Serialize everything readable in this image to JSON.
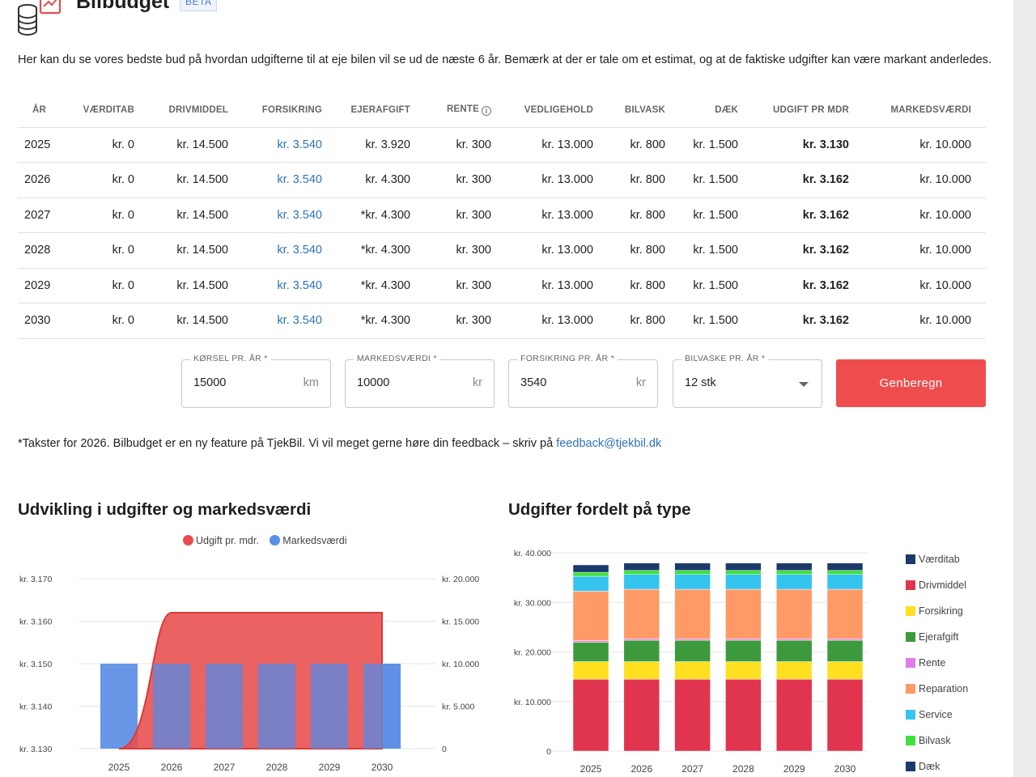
{
  "header": {
    "title": "Bilbudget",
    "badge": "BETA"
  },
  "intro": "Her kan du se vores bedste bud på hvordan udgifterne til at eje bilen vil se ud de næste 6 år. Bemærk at der er tale om et estimat, og at de faktiske udgifter kan være markant anderledes.",
  "table": {
    "headers": [
      "ÅR",
      "VÆRDITAB",
      "DRIVMIDDEL",
      "FORSIKRING",
      "EJERAFGIFT",
      "RENTE",
      "VEDLIGEHOLD",
      "BILVASK",
      "DÆK",
      "UDGIFT PR MDR",
      "MARKEDSVÆRDI"
    ],
    "rows": [
      [
        "2025",
        "kr. 0",
        "kr. 14.500",
        "kr. 3.540",
        "kr. 3.920",
        "kr. 300",
        "kr. 13.000",
        "kr. 800",
        "kr. 1.500",
        "kr. 3.130",
        "kr. 10.000"
      ],
      [
        "2026",
        "kr. 0",
        "kr. 14.500",
        "kr. 3.540",
        "kr. 4.300",
        "kr. 300",
        "kr. 13.000",
        "kr. 800",
        "kr. 1.500",
        "kr. 3.162",
        "kr. 10.000"
      ],
      [
        "2027",
        "kr. 0",
        "kr. 14.500",
        "kr. 3.540",
        "*kr. 4.300",
        "kr. 300",
        "kr. 13.000",
        "kr. 800",
        "kr. 1.500",
        "kr. 3.162",
        "kr. 10.000"
      ],
      [
        "2028",
        "kr. 0",
        "kr. 14.500",
        "kr. 3.540",
        "*kr. 4.300",
        "kr. 300",
        "kr. 13.000",
        "kr. 800",
        "kr. 1.500",
        "kr. 3.162",
        "kr. 10.000"
      ],
      [
        "2029",
        "kr. 0",
        "kr. 14.500",
        "kr. 3.540",
        "*kr. 4.300",
        "kr. 300",
        "kr. 13.000",
        "kr. 800",
        "kr. 1.500",
        "kr. 3.162",
        "kr. 10.000"
      ],
      [
        "2030",
        "kr. 0",
        "kr. 14.500",
        "kr. 3.540",
        "*kr. 4.300",
        "kr. 300",
        "kr. 13.000",
        "kr. 800",
        "kr. 1.500",
        "kr. 3.162",
        "kr. 10.000"
      ]
    ]
  },
  "form": {
    "korsel": {
      "label": "KØRSEL PR. ÅR *",
      "value": "15000",
      "unit": "km"
    },
    "markedsvaerdi": {
      "label": "MARKEDSVÆRDI *",
      "value": "10000",
      "unit": "kr"
    },
    "forsikring": {
      "label": "FORSIKRING PR. ÅR *",
      "value": "3540",
      "unit": "kr"
    },
    "bilvaske": {
      "label": "BILVASKE PR. ÅR *",
      "value": "12 stk"
    },
    "button": "Genberegn"
  },
  "note": {
    "text": "*Takster for 2026. Bilbudget er en ny feature på TjekBil. Vi vil meget gerne høre din feedback – skriv på ",
    "link": "feedback@tjekbil.dk"
  },
  "colors": {
    "red": "#e84c4c",
    "blue": "#5b8ee6",
    "button": "#ef4d4d",
    "link": "#2e73b8",
    "vaerditab": "#1b3a6b",
    "drivmiddel": "#e0344f",
    "forsikring": "#ffe020",
    "ejerafgift": "#3c9a3c",
    "rente": "#e07ce8",
    "reparation": "#ff9a66",
    "service": "#34c4f0",
    "bilvask": "#3ee03e",
    "daek": "#1b3a6b"
  },
  "chart_data": [
    {
      "type": "bar",
      "title": "Udvikling i udgifter og markedsværdi",
      "categories": [
        "2025",
        "2026",
        "2027",
        "2028",
        "2029",
        "2030"
      ],
      "series": [
        {
          "name": "Udgift pr. mdr.",
          "values": [
            3130,
            3162,
            3162,
            3162,
            3162,
            3162
          ],
          "axis": "left",
          "render": "area"
        },
        {
          "name": "Markedsværdi",
          "values": [
            10000,
            10000,
            10000,
            10000,
            10000,
            10000
          ],
          "axis": "right",
          "render": "bar"
        }
      ],
      "ylim_left": [
        3130,
        3170
      ],
      "yticks_left": [
        "kr. 3.170",
        "kr. 3.160",
        "kr. 3.150",
        "kr. 3.140",
        "kr. 3.130"
      ],
      "ylim_right": [
        0,
        20000
      ],
      "yticks_right": [
        "kr. 20.000",
        "kr. 15.000",
        "kr. 10.000",
        "kr. 5.000",
        "0"
      ],
      "legend": "top-center",
      "grid": true
    },
    {
      "type": "bar",
      "stacked": true,
      "title": "Udgifter fordelt på type",
      "categories": [
        "2025",
        "2026",
        "2027",
        "2028",
        "2029",
        "2030"
      ],
      "series": [
        {
          "name": "Drivmiddel",
          "values": [
            14500,
            14500,
            14500,
            14500,
            14500,
            14500
          ]
        },
        {
          "name": "Forsikring",
          "values": [
            3540,
            3540,
            3540,
            3540,
            3540,
            3540
          ]
        },
        {
          "name": "Ejerafgift",
          "values": [
            3920,
            4300,
            4300,
            4300,
            4300,
            4300
          ]
        },
        {
          "name": "Rente",
          "values": [
            300,
            300,
            300,
            300,
            300,
            300
          ]
        },
        {
          "name": "Reparation",
          "values": [
            10000,
            10000,
            10000,
            10000,
            10000,
            10000
          ]
        },
        {
          "name": "Service",
          "values": [
            3000,
            3000,
            3000,
            3000,
            3000,
            3000
          ]
        },
        {
          "name": "Bilvask",
          "values": [
            800,
            800,
            800,
            800,
            800,
            800
          ]
        },
        {
          "name": "Dæk",
          "values": [
            1500,
            1500,
            1500,
            1500,
            1500,
            1500
          ]
        },
        {
          "name": "Værditab",
          "values": [
            0,
            0,
            0,
            0,
            0,
            0
          ]
        }
      ],
      "legend_items": [
        "Værditab",
        "Drivmiddel",
        "Forsikring",
        "Ejerafgift",
        "Rente",
        "Reparation",
        "Service",
        "Bilvask",
        "Dæk"
      ],
      "ylim": [
        0,
        40000
      ],
      "yticks": [
        "kr. 40.000",
        "kr. 30.000",
        "kr. 20.000",
        "kr. 10.000",
        "0"
      ],
      "legend": "right",
      "grid": true
    }
  ]
}
